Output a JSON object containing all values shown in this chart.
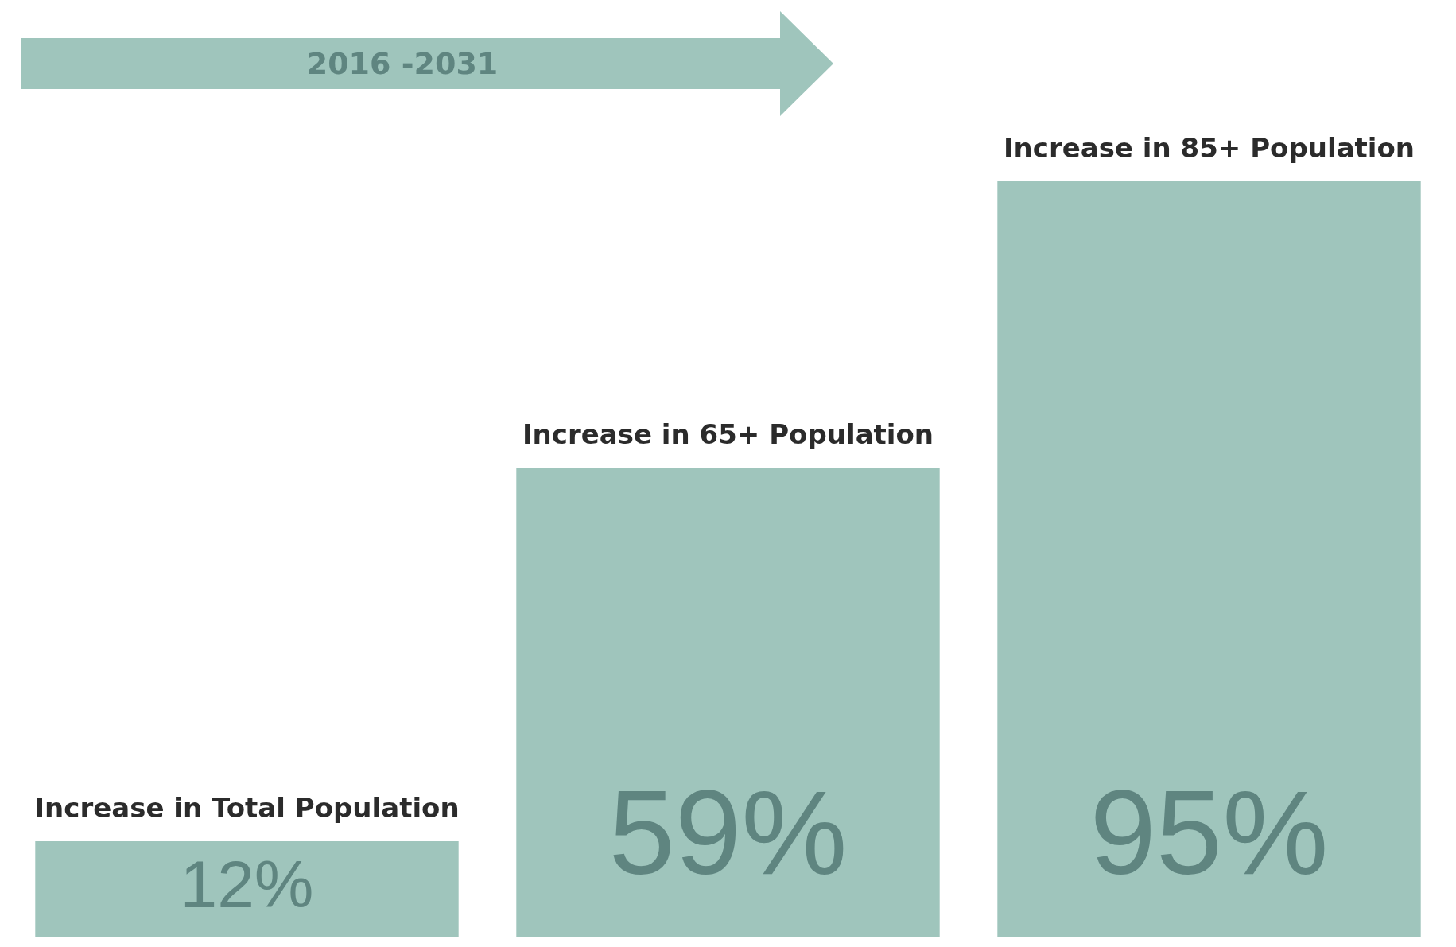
{
  "chart_data": {
    "type": "bar",
    "title": "2016 -2031",
    "categories": [
      "Increase in Total Population",
      "Increase in 65+ Population",
      "Increase in 85+ Population"
    ],
    "values": [
      12,
      59,
      95
    ],
    "value_labels": [
      "12%",
      "59%",
      "95%"
    ],
    "color": "#9fc5bc",
    "legend": false
  }
}
